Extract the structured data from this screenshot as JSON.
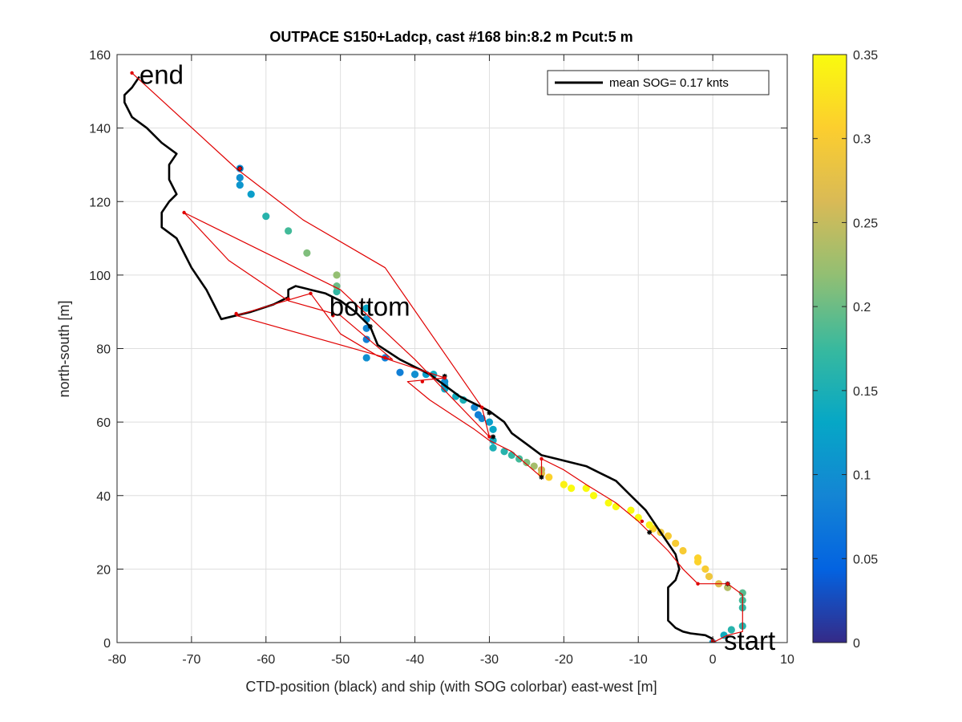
{
  "chart_data": {
    "type": "scatter",
    "title": "OUTPACE S150+Ladcp, cast #168 bin:8.2 m  Pcut:5 m",
    "xlabel": "CTD-position (black) and ship (with SOG colorbar) east-west [m]",
    "ylabel": "north-south [m]",
    "xlim": [
      -80,
      10
    ],
    "ylim": [
      0,
      160
    ],
    "xticks": [
      "-80",
      "-70",
      "-60",
      "-50",
      "-40",
      "-30",
      "-20",
      "-10",
      "0",
      "10"
    ],
    "yticks": [
      "0",
      "20",
      "40",
      "60",
      "80",
      "100",
      "120",
      "140",
      "160"
    ],
    "grid": true,
    "legend": {
      "placement": "top-right",
      "label": "mean SOG=  0.17 knts"
    },
    "colorbar": {
      "range": [
        0,
        0.35
      ],
      "ticks": [
        "0",
        "0.05",
        "0.1",
        "0.15",
        "0.2",
        "0.25",
        "0.3",
        "0.35"
      ],
      "colormap": [
        "#352a87",
        "#0363e1",
        "#1485d4",
        "#06a7c6",
        "#38b99e",
        "#92bf73",
        "#d9ba56",
        "#fcce2e",
        "#f9fb0e"
      ]
    },
    "annotations": [
      {
        "text": "end",
        "x": -77,
        "y": 152
      },
      {
        "text": "bottom",
        "x": -51.5,
        "y": 89
      },
      {
        "text": "start",
        "x": 1.5,
        "y": -2
      }
    ],
    "series": [
      {
        "type": "line",
        "color": "#000000",
        "points": [
          [
            0,
            0
          ],
          [
            0,
            1
          ],
          [
            -1,
            2
          ],
          [
            -3,
            2.5
          ],
          [
            -4,
            3
          ],
          [
            -5,
            4
          ],
          [
            -6,
            6
          ],
          [
            -6,
            9
          ],
          [
            -6,
            12
          ],
          [
            -6,
            15
          ],
          [
            -5,
            17
          ],
          [
            -4.5,
            20
          ],
          [
            -5,
            24
          ],
          [
            -6,
            27
          ],
          [
            -7,
            30
          ],
          [
            -8,
            33
          ],
          [
            -9,
            36
          ],
          [
            -11,
            40
          ],
          [
            -13,
            44
          ],
          [
            -15,
            46
          ],
          [
            -17,
            48
          ],
          [
            -19,
            49
          ],
          [
            -21,
            50
          ],
          [
            -23,
            51
          ],
          [
            -25,
            54
          ],
          [
            -27,
            57
          ],
          [
            -28,
            60
          ],
          [
            -30,
            63
          ],
          [
            -32,
            65
          ],
          [
            -34,
            67
          ],
          [
            -36,
            70
          ],
          [
            -38,
            73
          ],
          [
            -42,
            77
          ],
          [
            -45,
            81
          ],
          [
            -46,
            86
          ],
          [
            -48,
            90
          ],
          [
            -50,
            93
          ],
          [
            -52,
            95
          ],
          [
            -54,
            96
          ],
          [
            -56,
            97
          ],
          [
            -57,
            96
          ],
          [
            -57,
            94
          ],
          [
            -59,
            92
          ],
          [
            -62,
            90
          ],
          [
            -66,
            88
          ],
          [
            -67,
            92
          ],
          [
            -68,
            96
          ],
          [
            -69,
            99
          ],
          [
            -70,
            102
          ],
          [
            -71,
            106
          ],
          [
            -72,
            110
          ],
          [
            -74,
            113
          ],
          [
            -74,
            117
          ],
          [
            -73,
            120
          ],
          [
            -72,
            122
          ],
          [
            -73,
            126
          ],
          [
            -73,
            130
          ],
          [
            -72,
            133
          ],
          [
            -74,
            136
          ],
          [
            -76,
            140
          ],
          [
            -78,
            143
          ],
          [
            -79,
            147
          ],
          [
            -79,
            149
          ],
          [
            -78,
            151
          ],
          [
            -77,
            154
          ]
        ]
      },
      {
        "type": "line",
        "color": "#e00000",
        "points": [
          [
            0,
            0
          ],
          [
            2,
            2
          ],
          [
            4,
            3
          ],
          [
            4,
            5
          ],
          [
            4,
            10
          ],
          [
            4,
            13
          ],
          [
            2,
            16
          ],
          [
            -2,
            16
          ],
          [
            -4,
            20
          ],
          [
            -6,
            25
          ],
          [
            -8,
            29
          ],
          [
            -9,
            31
          ],
          [
            -10,
            33
          ],
          [
            -13,
            38
          ],
          [
            -17,
            43
          ],
          [
            -20,
            47
          ],
          [
            -23,
            50
          ],
          [
            -23,
            45
          ],
          [
            -27,
            52
          ],
          [
            -30,
            55
          ],
          [
            -32,
            58
          ],
          [
            -35,
            62
          ],
          [
            -38,
            66
          ],
          [
            -41,
            71
          ],
          [
            -36,
            72
          ],
          [
            -45,
            78
          ],
          [
            -50,
            84
          ],
          [
            -54,
            95
          ],
          [
            -64,
            89
          ],
          [
            -43,
            77
          ],
          [
            -50,
            89
          ],
          [
            -57,
            93
          ],
          [
            -65,
            104
          ],
          [
            -71,
            117
          ],
          [
            -50,
            96
          ],
          [
            -40,
            77
          ],
          [
            -30,
            56
          ],
          [
            -31,
            64
          ],
          [
            -44,
            102
          ],
          [
            -55,
            115
          ],
          [
            -64,
            129
          ],
          [
            -78,
            155
          ]
        ]
      },
      {
        "type": "scatter",
        "name": "ship (SOG)",
        "x": [
          0,
          1.5,
          2.5,
          4,
          4,
          4,
          4,
          2,
          0.8,
          -0.5,
          -1,
          -2,
          -2,
          -4,
          -5,
          -6,
          -7,
          -8,
          -8.5,
          -10,
          -11,
          -13,
          -14,
          -16,
          -17,
          -19,
          -20,
          -22,
          -23,
          -23,
          -24,
          -25,
          -26,
          -27,
          -28,
          -29.5,
          -29.5,
          -29.5,
          -30,
          -31,
          -31.5,
          -32,
          -33.5,
          -34.5,
          -36,
          -36,
          -36,
          -37.5,
          -38.5,
          -40,
          -42,
          -44,
          -46.5,
          -46.5,
          -46.5,
          -46.5,
          -46.5,
          -50.5,
          -50.5,
          -50.5,
          -54.5,
          -57,
          -60,
          -62,
          -63.5,
          -63.5,
          -63.5
        ],
        "y": [
          0,
          2,
          3.5,
          4.5,
          9.5,
          11.5,
          13.5,
          15,
          16,
          18,
          20,
          22,
          23,
          25,
          27,
          29,
          30,
          31,
          32,
          34,
          36,
          37,
          38,
          40,
          42,
          42,
          43,
          45,
          46,
          47,
          48,
          49,
          50,
          51,
          52,
          53,
          55,
          58,
          60,
          61,
          62,
          64,
          66,
          67,
          69,
          70,
          71,
          73,
          73,
          73,
          73.5,
          77.5,
          77.5,
          82.5,
          85.5,
          88,
          91,
          95.5,
          97,
          100,
          106,
          112,
          116,
          122,
          124.5,
          126.5,
          129
        ],
        "sog": [
          0.12,
          0.14,
          0.16,
          0.16,
          0.17,
          0.18,
          0.19,
          0.24,
          0.27,
          0.29,
          0.3,
          0.31,
          0.31,
          0.3,
          0.3,
          0.3,
          0.29,
          0.31,
          0.34,
          0.35,
          0.35,
          0.35,
          0.35,
          0.35,
          0.35,
          0.35,
          0.34,
          0.31,
          0.28,
          0.25,
          0.23,
          0.21,
          0.18,
          0.17,
          0.16,
          0.15,
          0.14,
          0.13,
          0.12,
          0.09,
          0.08,
          0.09,
          0.15,
          0.14,
          0.13,
          0.12,
          0.1,
          0.14,
          0.12,
          0.1,
          0.08,
          0.08,
          0.1,
          0.08,
          0.09,
          0.11,
          0.13,
          0.17,
          0.2,
          0.22,
          0.21,
          0.18,
          0.16,
          0.12,
          0.11,
          0.1,
          0.09
        ]
      }
    ],
    "markers": {
      "black_stars": [
        [
          0,
          0
        ],
        [
          2,
          16
        ],
        [
          -8.5,
          30
        ],
        [
          -23,
          45
        ],
        [
          -29.5,
          56
        ],
        [
          -30,
          62.5
        ],
        [
          -36,
          72.5
        ],
        [
          -46,
          86
        ],
        [
          -63.5,
          129
        ]
      ],
      "red_points": [
        [
          0,
          0.5
        ],
        [
          2,
          16
        ],
        [
          -2,
          16
        ],
        [
          -9.5,
          33
        ],
        [
          -23,
          50
        ],
        [
          -30,
          56
        ],
        [
          -31,
          64
        ],
        [
          -36,
          72
        ],
        [
          -39,
          71
        ],
        [
          -44,
          77.5
        ],
        [
          -51,
          89
        ],
        [
          -54,
          95
        ],
        [
          -57,
          93.5
        ],
        [
          -64,
          89.5
        ],
        [
          -71,
          117
        ],
        [
          -63.5,
          129
        ],
        [
          -78,
          155
        ]
      ]
    }
  }
}
